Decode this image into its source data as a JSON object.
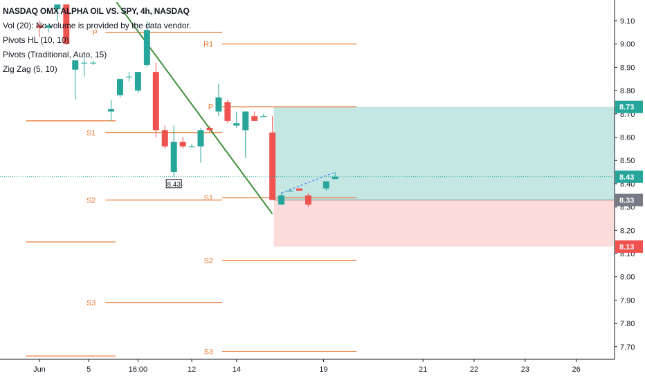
{
  "legend": {
    "title": "NASDAQ OMX ALPHA OIL VS. SPY, 4h, NASDAQ",
    "vol": "Vol (20): No volume is provided by the data vendor.",
    "pivots_hl": "Pivots HL (10, 10)",
    "pivots_trad": "Pivots (Traditional, Auto, 15)",
    "zigzag": "Zig Zag (5, 10)"
  },
  "colors": {
    "up": "#26a69a",
    "down": "#ef5350",
    "pivot": "#e6752a",
    "trend": "#3f8f3a",
    "profit_zone": "#b2dfdb",
    "loss_zone": "#fcd6d5",
    "axis": "#131722"
  },
  "chart_data": {
    "type": "candlestick",
    "y_axis": {
      "ticks": [
        "9.10",
        "9.00",
        "8.90",
        "8.80",
        "8.70",
        "8.60",
        "8.50",
        "8.40",
        "8.30",
        "8.20",
        "8.10",
        "8.00",
        "7.90",
        "7.80",
        "7.70"
      ],
      "range": [
        7.66,
        9.17
      ]
    },
    "x_axis": {
      "ticks": [
        "Jun",
        "5",
        "16:00",
        "12",
        "14",
        "19",
        "21",
        "22",
        "23",
        "26"
      ]
    },
    "candles": [
      {
        "o": 9.08,
        "h": 9.1,
        "l": 9.03,
        "c": 9.07,
        "slot": 1
      },
      {
        "o": 9.07,
        "h": 9.09,
        "l": 9.05,
        "c": 9.08,
        "slot": 2
      },
      {
        "o": 9.15,
        "h": 9.17,
        "l": 9.1,
        "c": 9.17,
        "slot": 3
      },
      {
        "o": 9.17,
        "h": 9.17,
        "l": 9.0,
        "c": 9.0,
        "slot": 4
      },
      {
        "o": 8.89,
        "h": 8.92,
        "l": 8.76,
        "c": 8.93,
        "slot": 5
      },
      {
        "o": 8.92,
        "h": 8.94,
        "l": 8.86,
        "c": 8.92,
        "slot": 6
      },
      {
        "o": 8.92,
        "h": 8.93,
        "l": 8.91,
        "c": 8.92,
        "slot": 7
      },
      {
        "o": 8.71,
        "h": 8.76,
        "l": 8.67,
        "c": 8.72,
        "slot": 9
      },
      {
        "o": 8.78,
        "h": 8.85,
        "l": 8.77,
        "c": 8.85,
        "slot": 10
      },
      {
        "o": 8.86,
        "h": 8.88,
        "l": 8.84,
        "c": 8.86,
        "slot": 11
      },
      {
        "o": 8.8,
        "h": 8.88,
        "l": 8.79,
        "c": 8.88,
        "slot": 12
      },
      {
        "o": 8.91,
        "h": 9.1,
        "l": 8.9,
        "c": 9.06,
        "slot": 13
      },
      {
        "o": 8.88,
        "h": 8.92,
        "l": 8.6,
        "c": 8.63,
        "slot": 14
      },
      {
        "o": 8.63,
        "h": 8.65,
        "l": 8.55,
        "c": 8.56,
        "slot": 15
      },
      {
        "o": 8.45,
        "h": 8.65,
        "l": 8.43,
        "c": 8.58,
        "slot": 16
      },
      {
        "o": 8.58,
        "h": 8.6,
        "l": 8.55,
        "c": 8.56,
        "slot": 17
      },
      {
        "o": 8.56,
        "h": 8.57,
        "l": 8.56,
        "c": 8.56,
        "slot": 18
      },
      {
        "o": 8.56,
        "h": 8.64,
        "l": 8.49,
        "c": 8.63,
        "slot": 19
      },
      {
        "o": 8.64,
        "h": 8.65,
        "l": 8.62,
        "c": 8.63,
        "slot": 20
      },
      {
        "o": 8.71,
        "h": 8.83,
        "l": 8.69,
        "c": 8.77,
        "slot": 21
      },
      {
        "o": 8.75,
        "h": 8.76,
        "l": 8.66,
        "c": 8.67,
        "slot": 22
      },
      {
        "o": 8.65,
        "h": 8.71,
        "l": 8.64,
        "c": 8.66,
        "slot": 23
      },
      {
        "o": 8.63,
        "h": 8.71,
        "l": 8.51,
        "c": 8.71,
        "slot": 24
      },
      {
        "o": 8.69,
        "h": 8.71,
        "l": 8.67,
        "c": 8.67,
        "slot": 25
      },
      {
        "o": 8.69,
        "h": 8.7,
        "l": 8.69,
        "c": 8.69,
        "slot": 26
      },
      {
        "o": 8.62,
        "h": 8.69,
        "l": 8.33,
        "c": 8.33,
        "slot": 27
      },
      {
        "o": 8.31,
        "h": 8.36,
        "l": 8.31,
        "c": 8.35,
        "slot": 28
      },
      {
        "o": 8.37,
        "h": 8.38,
        "l": 8.37,
        "c": 8.37,
        "slot": 29
      },
      {
        "o": 8.38,
        "h": 8.38,
        "l": 8.37,
        "c": 8.37,
        "slot": 30
      },
      {
        "o": 8.35,
        "h": 8.36,
        "l": 8.3,
        "c": 8.31,
        "slot": 31
      },
      {
        "o": 8.38,
        "h": 8.41,
        "l": 8.37,
        "c": 8.41,
        "slot": 33
      },
      {
        "o": 8.42,
        "h": 8.45,
        "l": 8.42,
        "c": 8.43,
        "slot": 34
      }
    ],
    "pivot_levels": [
      {
        "label": "P",
        "price": 9.05,
        "from_slot": 7.6,
        "to_slot": 21.4,
        "label_slot": 7.8
      },
      {
        "label": "S1",
        "price": 8.62,
        "from_slot": 7.6,
        "to_slot": 21.4,
        "label_slot": 7.6
      },
      {
        "label": "S2",
        "price": 8.33,
        "from_slot": 7.6,
        "to_slot": 21.4,
        "label_slot": 7.6
      },
      {
        "label": "S3",
        "price": 7.89,
        "from_slot": 7.6,
        "to_slot": 21.4,
        "label_slot": 7.6
      },
      {
        "label": "R1",
        "price": 9.0,
        "from_slot": 20.6,
        "to_slot": 36.4,
        "label_slot": 20.7
      },
      {
        "label": "P",
        "price": 8.73,
        "from_slot": 20.6,
        "to_slot": 36.4,
        "label_slot": 20.7
      },
      {
        "label": "S1",
        "price": 8.34,
        "from_slot": 20.6,
        "to_slot": 36.4,
        "label_slot": 20.7
      },
      {
        "label": "S2",
        "price": 8.07,
        "from_slot": 20.6,
        "to_slot": 36.4,
        "label_slot": 20.7
      },
      {
        "label": "S3",
        "price": 7.68,
        "from_slot": 20.6,
        "to_slot": 36.4,
        "label_slot": 20.7
      }
    ],
    "prev_levels": [
      {
        "price": 8.67,
        "from_slot": -0.5,
        "to_slot": 9.5
      },
      {
        "price": 8.15,
        "from_slot": -0.5,
        "to_slot": 9.5
      },
      {
        "price": 7.66,
        "from_slot": -0.5,
        "to_slot": 9.5
      }
    ],
    "trend_line": {
      "from": {
        "slot": 9.6,
        "price": 9.18
      },
      "to": {
        "slot": 27,
        "price": 8.27
      }
    },
    "position": {
      "entry": 8.33,
      "target": 8.73,
      "stop": 8.13,
      "from_slot": 27,
      "to_slot": 69
    },
    "current_price": 8.43,
    "price_tags": [
      {
        "value": "8.73",
        "price": 8.73,
        "color": "#26a69a"
      },
      {
        "value": "8.43",
        "price": 8.43,
        "color": "#26a69a"
      },
      {
        "value": "8.33",
        "price": 8.33,
        "color": "#787b86"
      },
      {
        "value": "8.13",
        "price": 8.13,
        "color": "#ef5350"
      }
    ],
    "marker": {
      "value": "8.43",
      "slot": 16,
      "price": 8.43
    }
  }
}
